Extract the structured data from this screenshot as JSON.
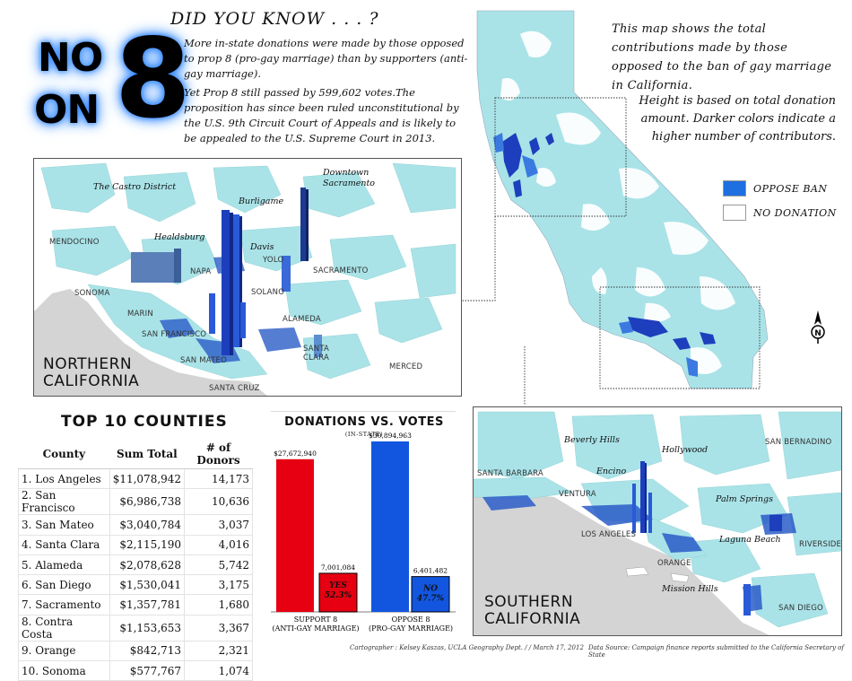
{
  "title": {
    "no": "NO",
    "on": "ON",
    "eight": "8"
  },
  "did_you_know": {
    "heading": "DID YOU KNOW . . . ?",
    "p1": "More in-state donations were made by those opposed to prop 8 (pro-gay marriage) than by supporters (anti-gay marriage).",
    "p2": "Yet Prop 8 still passed by 599,602 votes.The proposition has since been ruled unconstitutional by the U.S. 9th Circuit Court of Appeals and is likely to be appealed to the U.S. Supreme Court in 2013."
  },
  "description": {
    "intro": "This map shows the total contributions made by those opposed to the ban of gay marriage in California.",
    "height": "Height is based on total donation amount. Darker colors indicate a higher number of contributors."
  },
  "legend": [
    {
      "label": "OPPOSE BAN",
      "color": "#1e6fe0"
    },
    {
      "label": "NO DONATION",
      "color": "#ffffff"
    }
  ],
  "north_map": {
    "title_line1": "NORTHERN",
    "title_line2": "CALIFORNIA",
    "counties": [
      "MENDOCINO",
      "YOLO",
      "SACRAMENTO",
      "NAPA",
      "SOLANO",
      "SONOMA",
      "MARIN",
      "SAN FRANCISCO",
      "SAN MATEO",
      "ALAMEDA",
      "SANTA CLARA",
      "SANTA CRUZ",
      "MERCED"
    ],
    "cities": [
      "The Castro District",
      "Burligame",
      "Downtown",
      "Sacramento",
      "Healdsburg",
      "Davis"
    ]
  },
  "south_map": {
    "title_line1": "SOUTHERN",
    "title_line2": "CALIFORNIA",
    "counties": [
      "SAN BERNADINO",
      "SANTA BARBARA",
      "VENTURA",
      "LOS ANGELES",
      "RIVERSIDE",
      "ORANGE",
      "SAN DIEGO"
    ],
    "cities": [
      "Beverly Hills",
      "Hollywood",
      "Encino",
      "Palm Springs",
      "Laguna Beach",
      "Mission Hills"
    ]
  },
  "top10": {
    "title": "TOP 10 COUNTIES",
    "headers": [
      "County",
      "Sum Total",
      "# of Donors"
    ],
    "rows": [
      [
        "1. Los Angeles",
        "$11,078,942",
        "14,173"
      ],
      [
        "2. San Francisco",
        "$6,986,738",
        "10,636"
      ],
      [
        "3. San Mateo",
        "$3,040,784",
        "3,037"
      ],
      [
        "4. Santa Clara",
        "$2,115,190",
        "4,016"
      ],
      [
        "5. Alameda",
        "$2,078,628",
        "5,742"
      ],
      [
        "6. San Diego",
        "$1,530,041",
        "3,175"
      ],
      [
        "7. Sacramento",
        "$1,357,781",
        "1,680"
      ],
      [
        "8. Contra Costa",
        "$1,153,653",
        "3,367"
      ],
      [
        "9. Orange",
        "$842,713",
        "2,321"
      ],
      [
        "10. Sonoma",
        "$577,767",
        "1,074"
      ]
    ]
  },
  "chart_data": {
    "type": "bar",
    "title": "DONATIONS VS. VOTES",
    "subtitle": "(IN-STATE)",
    "groups": [
      {
        "label_line1": "SUPPORT 8",
        "label_line2": "(ANTI-GAY MARRIAGE)",
        "donation": 27672940,
        "donation_label": "$27,672,940",
        "votes": 7001084,
        "votes_label": "7,001,084",
        "vote_label_line1": "YES",
        "vote_label_line2": "52.3%",
        "color": "#e60012"
      },
      {
        "label_line1": "OPPOSE 8",
        "label_line2": "(PRO-GAY MARRIAGE)",
        "donation": 30894963,
        "donation_label": "$30,894,963",
        "votes": 6401482,
        "votes_label": "6,401,482",
        "vote_label_line1": "NO",
        "vote_label_line2": "47.7%",
        "color": "#1256e0"
      }
    ]
  },
  "footer": {
    "credit": "Cartographer : Kelsey Kaszas, UCLA Geography Dept. / / March 17, 2012",
    "source": "Data Source: Campaign finance reports submitted to the California Secretary of State"
  }
}
